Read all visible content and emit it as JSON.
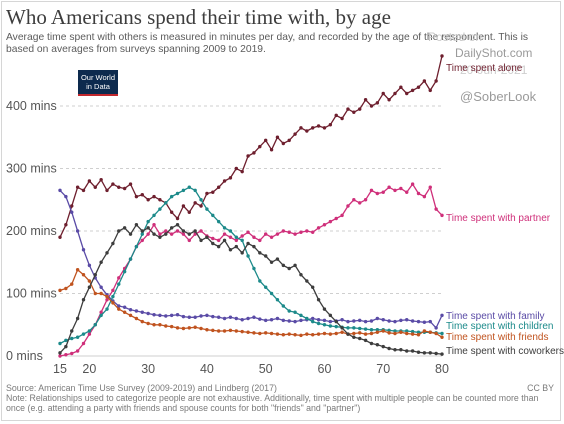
{
  "title": "Who Americans spend their time with, by age",
  "subtitle": "Average time spent with others is measured in minutes per day, and recorded by the age of the respondent. This is based on averages from surveys spanning 2009 to 2019.",
  "logo": {
    "line1": "Our World",
    "line2": "in Data"
  },
  "watermarks": {
    "a": "Posted on",
    "b": "DailyShot.com",
    "c": "20-Jun-2021",
    "d": "@SoberLook"
  },
  "source": "Source: American Time Use Survey (2009-2019) and Lindberg (2017)",
  "note": "Note: Relationships used to categorize people are not exhaustive. Additionally, time spent with multiple people can be counted more than once (e.g. attending a party with friends and spouse counts for both \"friends\" and \"partner\")",
  "license": "CC BY",
  "colors": {
    "alone": "#6e1f2e",
    "partner": "#cf2f7a",
    "family": "#5a4ba6",
    "children": "#1c8a8a",
    "friends": "#c0531f",
    "coworkers": "#3d3d3d"
  },
  "chart_data": {
    "type": "line",
    "x_ticks": [
      15,
      20,
      30,
      40,
      50,
      60,
      70,
      80
    ],
    "y_ticks": [
      0,
      100,
      200,
      300,
      400
    ],
    "y_tick_labels": [
      "0 mins",
      "100 mins",
      "200 mins",
      "300 mins",
      "400 mins"
    ],
    "xlim": [
      15,
      80
    ],
    "ylim": [
      0,
      480
    ],
    "grid": "horizontal dotted",
    "series": [
      {
        "name": "Time spent alone",
        "key": "alone",
        "x": [
          15,
          16,
          17,
          18,
          19,
          20,
          21,
          22,
          23,
          24,
          25,
          26,
          27,
          28,
          29,
          30,
          31,
          32,
          33,
          34,
          35,
          36,
          37,
          38,
          39,
          40,
          41,
          42,
          43,
          44,
          45,
          46,
          47,
          48,
          49,
          50,
          51,
          52,
          53,
          54,
          55,
          56,
          57,
          58,
          59,
          60,
          61,
          62,
          63,
          64,
          65,
          66,
          67,
          68,
          69,
          70,
          71,
          72,
          73,
          74,
          75,
          76,
          77,
          78,
          79,
          80
        ],
        "y": [
          190,
          210,
          240,
          270,
          265,
          280,
          270,
          282,
          265,
          275,
          270,
          268,
          275,
          255,
          258,
          250,
          255,
          250,
          245,
          230,
          220,
          240,
          230,
          245,
          240,
          260,
          262,
          270,
          280,
          285,
          300,
          295,
          320,
          325,
          335,
          345,
          330,
          350,
          340,
          345,
          355,
          365,
          360,
          365,
          368,
          365,
          370,
          385,
          380,
          395,
          390,
          395,
          410,
          400,
          405,
          420,
          410,
          420,
          430,
          420,
          425,
          430,
          440,
          425,
          440,
          480
        ]
      },
      {
        "name": "Time spent with partner",
        "key": "partner",
        "x": [
          15,
          16,
          17,
          18,
          19,
          20,
          21,
          22,
          23,
          24,
          25,
          26,
          27,
          28,
          29,
          30,
          31,
          32,
          33,
          34,
          35,
          36,
          37,
          38,
          39,
          40,
          41,
          42,
          43,
          44,
          45,
          46,
          47,
          48,
          49,
          50,
          51,
          52,
          53,
          54,
          55,
          56,
          57,
          58,
          59,
          60,
          61,
          62,
          63,
          64,
          65,
          66,
          67,
          68,
          69,
          70,
          71,
          72,
          73,
          74,
          75,
          76,
          77,
          78,
          79,
          80
        ],
        "y": [
          0,
          2,
          4,
          8,
          20,
          35,
          50,
          70,
          90,
          105,
          125,
          140,
          155,
          175,
          185,
          195,
          210,
          195,
          200,
          195,
          200,
          195,
          185,
          195,
          200,
          192,
          188,
          185,
          195,
          190,
          185,
          192,
          198,
          190,
          185,
          195,
          190,
          195,
          200,
          198,
          195,
          198,
          200,
          198,
          205,
          210,
          215,
          220,
          225,
          240,
          250,
          245,
          250,
          265,
          260,
          262,
          270,
          265,
          268,
          262,
          275,
          260,
          255,
          270,
          235,
          225
        ]
      },
      {
        "name": "Time spent with family",
        "key": "family",
        "x": [
          15,
          16,
          17,
          18,
          19,
          20,
          21,
          22,
          23,
          24,
          25,
          26,
          27,
          28,
          29,
          30,
          31,
          32,
          33,
          34,
          35,
          36,
          37,
          38,
          39,
          40,
          41,
          42,
          43,
          44,
          45,
          46,
          47,
          48,
          49,
          50,
          51,
          52,
          53,
          54,
          55,
          56,
          57,
          58,
          59,
          60,
          61,
          62,
          63,
          64,
          65,
          66,
          67,
          68,
          69,
          70,
          71,
          72,
          73,
          74,
          75,
          76,
          77,
          78,
          79,
          80
        ],
        "y": [
          265,
          255,
          230,
          200,
          170,
          145,
          125,
          110,
          98,
          88,
          80,
          78,
          74,
          72,
          70,
          68,
          66,
          65,
          64,
          65,
          66,
          63,
          62,
          62,
          64,
          65,
          63,
          62,
          60,
          62,
          60,
          58,
          60,
          62,
          59,
          57,
          58,
          60,
          57,
          56,
          55,
          57,
          58,
          60,
          58,
          57,
          55,
          56,
          58,
          55,
          56,
          57,
          55,
          56,
          60,
          58,
          56,
          55,
          57,
          58,
          56,
          55,
          54,
          55,
          45,
          65
        ]
      },
      {
        "name": "Time spent with children",
        "key": "children",
        "x": [
          15,
          16,
          17,
          18,
          19,
          20,
          21,
          22,
          23,
          24,
          25,
          26,
          27,
          28,
          29,
          30,
          31,
          32,
          33,
          34,
          35,
          36,
          37,
          38,
          39,
          40,
          41,
          42,
          43,
          44,
          45,
          46,
          47,
          48,
          49,
          50,
          51,
          52,
          53,
          54,
          55,
          56,
          57,
          58,
          59,
          60,
          61,
          62,
          63,
          64,
          65,
          66,
          67,
          68,
          69,
          70,
          71,
          72,
          73,
          74,
          75,
          76,
          77,
          78,
          79,
          80
        ],
        "y": [
          20,
          25,
          28,
          30,
          35,
          40,
          50,
          65,
          75,
          95,
          115,
          135,
          155,
          175,
          195,
          215,
          225,
          235,
          245,
          255,
          260,
          265,
          270,
          265,
          250,
          235,
          225,
          215,
          205,
          200,
          190,
          185,
          160,
          140,
          120,
          110,
          100,
          90,
          80,
          72,
          70,
          65,
          60,
          55,
          52,
          50,
          48,
          47,
          46,
          45,
          45,
          44,
          43,
          42,
          42,
          42,
          41,
          40,
          40,
          40,
          39,
          38,
          38,
          38,
          37,
          36
        ]
      },
      {
        "name": "Time spent with friends",
        "key": "friends",
        "x": [
          15,
          16,
          17,
          18,
          19,
          20,
          21,
          22,
          23,
          24,
          25,
          26,
          27,
          28,
          29,
          30,
          31,
          32,
          33,
          34,
          35,
          36,
          37,
          38,
          39,
          40,
          41,
          42,
          43,
          44,
          45,
          46,
          47,
          48,
          49,
          50,
          51,
          52,
          53,
          54,
          55,
          56,
          57,
          58,
          59,
          60,
          61,
          62,
          63,
          64,
          65,
          66,
          67,
          68,
          69,
          70,
          71,
          72,
          73,
          74,
          75,
          76,
          77,
          78,
          79,
          80
        ],
        "y": [
          105,
          108,
          115,
          138,
          130,
          120,
          100,
          100,
          95,
          85,
          75,
          70,
          65,
          60,
          55,
          52,
          50,
          50,
          48,
          47,
          45,
          44,
          45,
          46,
          44,
          42,
          41,
          40,
          40,
          41,
          40,
          39,
          38,
          37,
          36,
          37,
          36,
          35,
          34,
          35,
          34,
          33,
          35,
          34,
          35,
          36,
          35,
          36,
          38,
          35,
          36,
          37,
          35,
          36,
          38,
          40,
          37,
          36,
          38,
          36,
          35,
          34,
          40,
          38,
          36,
          30
        ]
      },
      {
        "name": "Time spent with coworkers",
        "key": "coworkers",
        "x": [
          15,
          16,
          17,
          18,
          19,
          20,
          21,
          22,
          23,
          24,
          25,
          26,
          27,
          28,
          29,
          30,
          31,
          32,
          33,
          34,
          35,
          36,
          37,
          38,
          39,
          40,
          41,
          42,
          43,
          44,
          45,
          46,
          47,
          48,
          49,
          50,
          51,
          52,
          53,
          54,
          55,
          56,
          57,
          58,
          59,
          60,
          61,
          62,
          63,
          64,
          65,
          66,
          67,
          68,
          69,
          70,
          71,
          72,
          73,
          74,
          75,
          76,
          77,
          78,
          79,
          80
        ],
        "y": [
          5,
          15,
          40,
          60,
          90,
          110,
          130,
          150,
          165,
          180,
          200,
          205,
          195,
          210,
          200,
          205,
          195,
          190,
          195,
          205,
          210,
          200,
          195,
          200,
          185,
          190,
          180,
          175,
          185,
          170,
          175,
          165,
          180,
          175,
          165,
          160,
          150,
          155,
          145,
          140,
          145,
          130,
          120,
          110,
          90,
          75,
          65,
          55,
          45,
          35,
          30,
          28,
          25,
          20,
          18,
          15,
          12,
          10,
          10,
          8,
          8,
          6,
          5,
          5,
          4,
          3
        ]
      }
    ]
  }
}
